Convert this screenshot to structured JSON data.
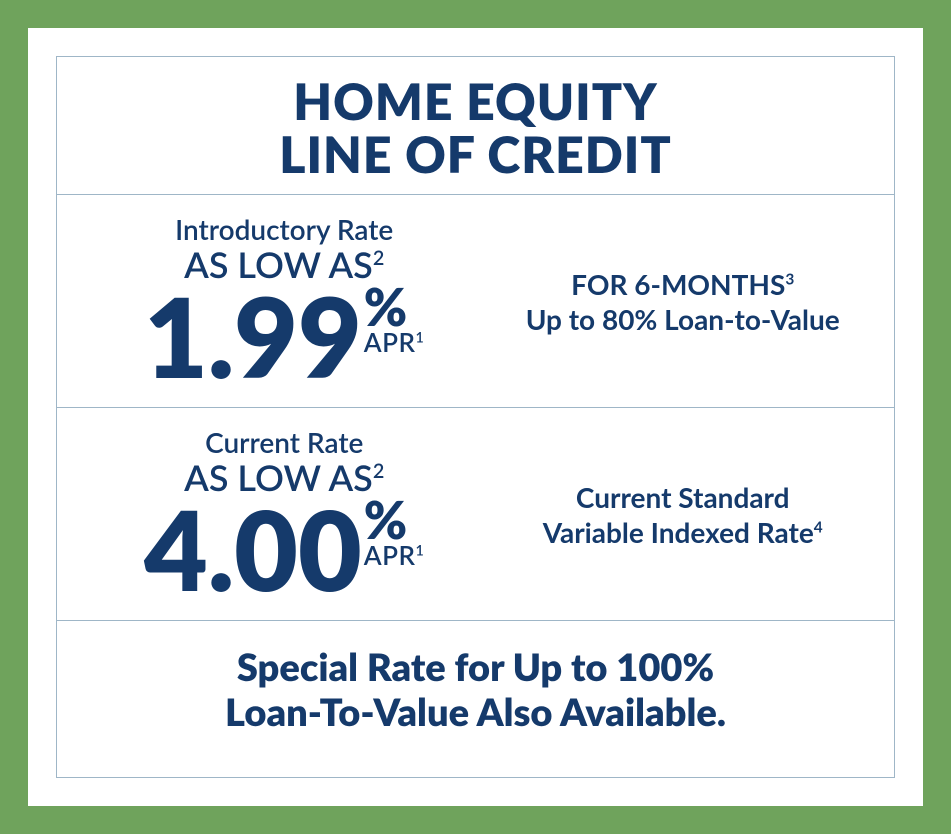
{
  "colors": {
    "frame": "#6fa35c",
    "white": "#ffffff",
    "border": "#9fb6c7",
    "text": "#153a6b"
  },
  "title": {
    "line1": "HOME EQUITY",
    "line2": "LINE OF CREDIT",
    "fontsize": 50
  },
  "intro": {
    "label": "Introductory Rate",
    "label_fontsize": 28,
    "aslow": "AS LOW AS",
    "aslow_sup": "2",
    "aslow_fontsize": 36,
    "rate": "1.99",
    "rate_fontsize": 110,
    "pct": "%",
    "pct_fontsize": 52,
    "apr": "APR",
    "apr_sup": "1",
    "apr_fontsize": 26,
    "right_line1": "FOR 6-MONTHS",
    "right_line1_sup": "3",
    "right_line2": "Up to 80% Loan-to-Value",
    "right_fontsize": 28
  },
  "current": {
    "label": "Current Rate",
    "label_fontsize": 28,
    "aslow": "AS LOW AS",
    "aslow_sup": "2",
    "aslow_fontsize": 36,
    "rate": "4.00",
    "rate_fontsize": 110,
    "pct": "%",
    "pct_fontsize": 52,
    "apr": "APR",
    "apr_sup": "1",
    "apr_fontsize": 26,
    "right_line1": "Current Standard",
    "right_line2": "Variable Indexed Rate",
    "right_line2_sup": "4",
    "right_fontsize": 28
  },
  "footer": {
    "line1": "Special Rate for Up to 100%",
    "line2": "Loan-To-Value Also Available.",
    "fontsize": 38
  }
}
